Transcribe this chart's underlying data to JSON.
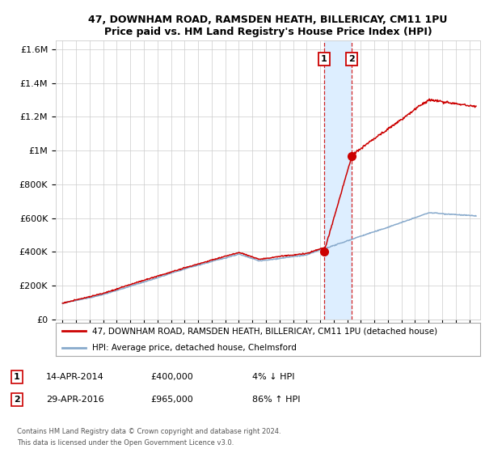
{
  "title": "47, DOWNHAM ROAD, RAMSDEN HEATH, BILLERICAY, CM11 1PU",
  "subtitle": "Price paid vs. HM Land Registry's House Price Index (HPI)",
  "sale1_x": 2014.29,
  "sale1_price": 400000,
  "sale2_x": 2016.33,
  "sale2_price": 965000,
  "legend_line1": "47, DOWNHAM ROAD, RAMSDEN HEATH, BILLERICAY, CM11 1PU (detached house)",
  "legend_line2": "HPI: Average price, detached house, Chelmsford",
  "sale1_date": "14-APR-2014",
  "sale1_amount": "£400,000",
  "sale1_hpi": "4% ↓ HPI",
  "sale2_date": "29-APR-2016",
  "sale2_amount": "£965,000",
  "sale2_hpi": "86% ↑ HPI",
  "footer1": "Contains HM Land Registry data © Crown copyright and database right 2024.",
  "footer2": "This data is licensed under the Open Government Licence v3.0.",
  "line_red": "#cc0000",
  "line_blue": "#88aacc",
  "highlight": "#ddeeff",
  "vline_color": "#cc0000",
  "ylim_min": 0,
  "ylim_max": 1650000,
  "xlim_min": 1994.5,
  "xlim_max": 2025.8,
  "yticks": [
    0,
    200000,
    400000,
    600000,
    800000,
    1000000,
    1200000,
    1400000,
    1600000
  ],
  "ytick_labels": [
    "£0",
    "£200K",
    "£400K",
    "£600K",
    "£800K",
    "£1M",
    "£1.2M",
    "£1.4M",
    "£1.6M"
  ],
  "xticks": [
    1995,
    1996,
    1997,
    1998,
    1999,
    2000,
    2001,
    2002,
    2003,
    2004,
    2005,
    2006,
    2007,
    2008,
    2009,
    2010,
    2011,
    2012,
    2013,
    2014,
    2015,
    2016,
    2017,
    2018,
    2019,
    2020,
    2021,
    2022,
    2023,
    2024,
    2025
  ]
}
